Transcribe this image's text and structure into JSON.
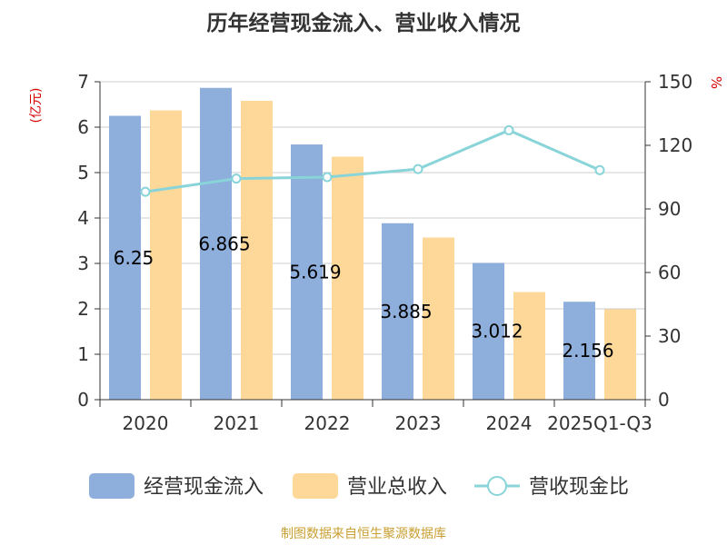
{
  "chart_data": {
    "type": "bar",
    "title": "历年经营现金流入、营业收入情况",
    "y_left_unit": "(亿元)",
    "y_right_unit": "%",
    "categories": [
      "2020",
      "2021",
      "2022",
      "2023",
      "2024",
      "2025Q1-Q3"
    ],
    "ylim_left": [
      0,
      7
    ],
    "yticks_left": [
      0,
      1,
      2,
      3,
      4,
      5,
      6,
      7
    ],
    "ylim_right": [
      0,
      150
    ],
    "yticks_right": [
      0,
      30,
      60,
      90,
      120,
      150
    ],
    "grid": true,
    "legend_position": "bottom",
    "series": [
      {
        "name": "经营现金流入",
        "kind": "bar",
        "color": "#8eaedc",
        "values": [
          6.25,
          6.865,
          5.619,
          3.885,
          3.012,
          2.156
        ],
        "labels": [
          "6.25",
          "6.865",
          "5.619",
          "3.885",
          "3.012",
          "2.156"
        ]
      },
      {
        "name": "营业总收入",
        "kind": "bar",
        "color": "#fed899",
        "values": [
          6.37,
          6.58,
          5.35,
          3.57,
          2.37,
          1.99
        ]
      },
      {
        "name": "营收现金比",
        "kind": "line",
        "axis": "right",
        "color": "#88d4d8",
        "values": [
          98.1,
          104.3,
          105.0,
          108.8,
          127.1,
          108.3
        ]
      }
    ],
    "source": "制图数据来自恒生聚源数据库"
  }
}
